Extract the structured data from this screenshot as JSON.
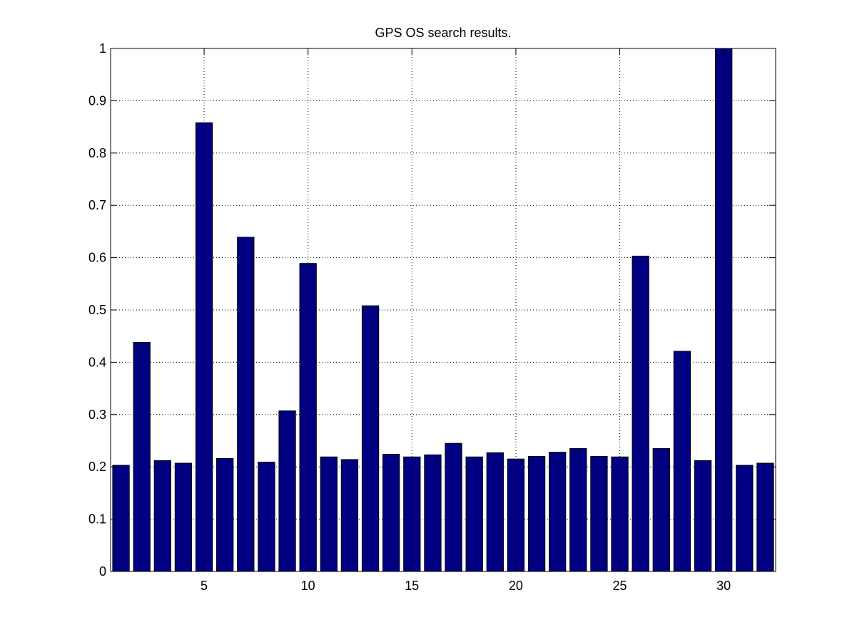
{
  "chart_data": {
    "type": "bar",
    "title": "GPS OS search results.",
    "xlabel": "",
    "ylabel": "",
    "x": [
      1,
      2,
      3,
      4,
      5,
      6,
      7,
      8,
      9,
      10,
      11,
      12,
      13,
      14,
      15,
      16,
      17,
      18,
      19,
      20,
      21,
      22,
      23,
      24,
      25,
      26,
      27,
      28,
      29,
      30,
      31,
      32
    ],
    "values": [
      0.203,
      0.438,
      0.212,
      0.207,
      0.858,
      0.216,
      0.639,
      0.209,
      0.307,
      0.589,
      0.219,
      0.214,
      0.508,
      0.224,
      0.219,
      0.223,
      0.245,
      0.219,
      0.227,
      0.215,
      0.22,
      0.228,
      0.235,
      0.22,
      0.219,
      0.603,
      0.235,
      0.421,
      0.212,
      1.0,
      0.203,
      0.207
    ],
    "xlim": [
      0.5,
      32.5
    ],
    "ylim": [
      0,
      1
    ],
    "xticks": [
      5,
      10,
      15,
      20,
      25,
      30
    ],
    "xtick_labels": [
      "5",
      "10",
      "15",
      "20",
      "25",
      "30"
    ],
    "yticks": [
      0,
      0.1,
      0.2,
      0.3,
      0.4,
      0.5,
      0.6,
      0.7,
      0.8,
      0.9,
      1
    ],
    "ytick_labels": [
      "0",
      "0.1",
      "0.2",
      "0.3",
      "0.4",
      "0.5",
      "0.6",
      "0.7",
      "0.8",
      "0.9",
      "1"
    ],
    "grid": true,
    "bar_color": "#000080",
    "edge_color": "#000000"
  }
}
